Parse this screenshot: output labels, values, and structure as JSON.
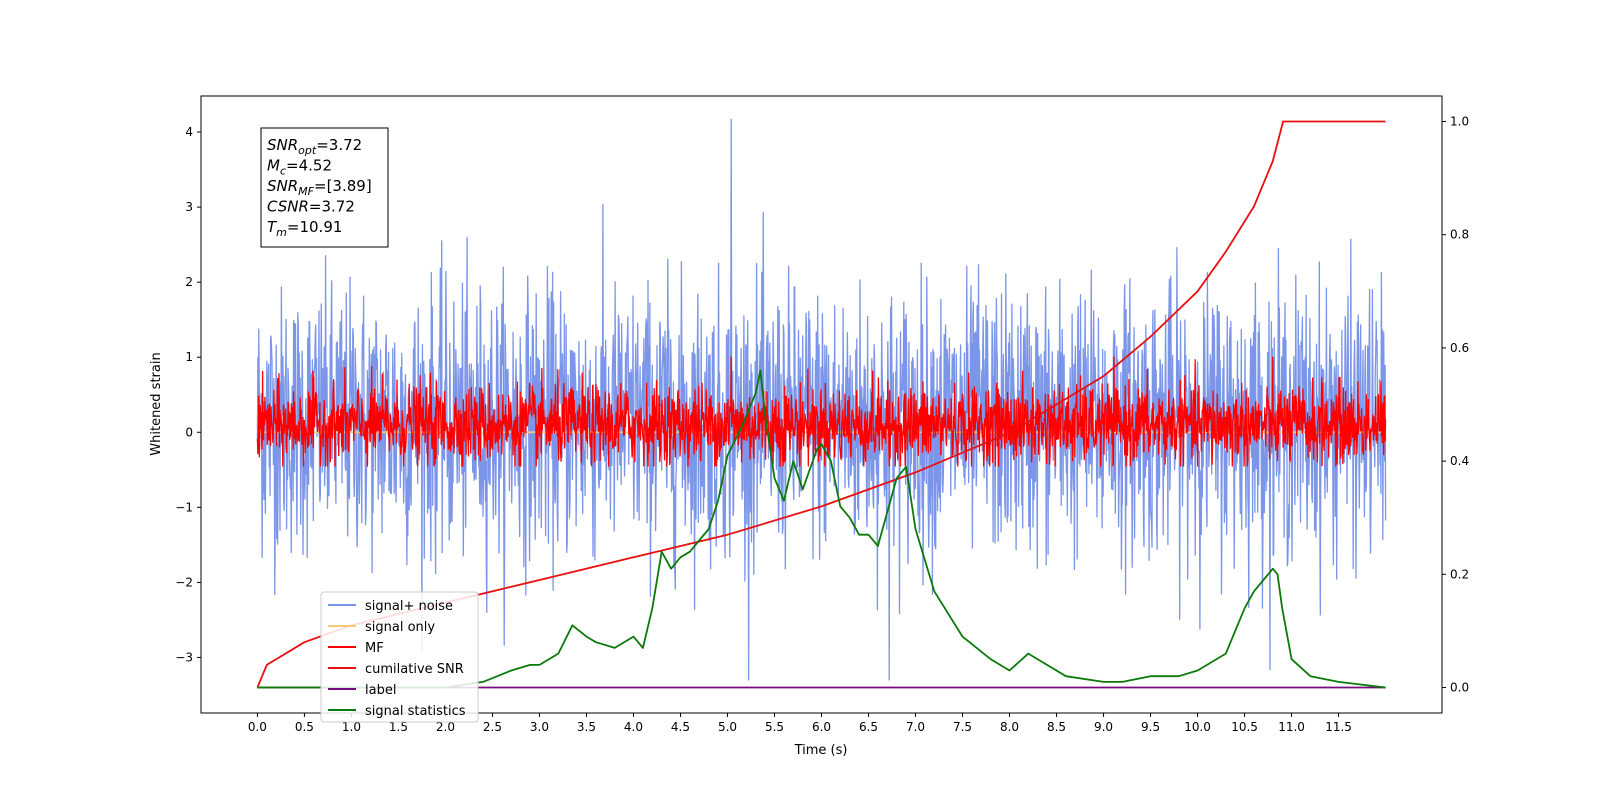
{
  "chart_data": {
    "type": "line",
    "xlabel": "Time (s)",
    "ylabel": "Whitened strain",
    "xlim": [
      -0.6,
      12.6
    ],
    "ylim": [
      -3.74,
      4.48
    ],
    "y2lim": [
      -0.045,
      1.045
    ],
    "x_ticks": [
      0.0,
      0.5,
      1.0,
      1.5,
      2.0,
      2.5,
      3.0,
      3.5,
      4.0,
      4.5,
      5.0,
      5.5,
      6.0,
      6.5,
      7.0,
      7.5,
      8.0,
      8.5,
      9.0,
      9.5,
      10.0,
      10.5,
      11.0,
      11.5
    ],
    "x_tick_labels": [
      "0.0",
      "0.5",
      "1.0",
      "1.5",
      "2.0",
      "2.5",
      "3.0",
      "3.5",
      "4.0",
      "4.5",
      "5.0",
      "5.5",
      "6.0",
      "6.5",
      "7.0",
      "7.5",
      "8.0",
      "8.5",
      "9.0",
      "9.5",
      "10.0",
      "10.5",
      "11.0",
      "11.5"
    ],
    "y_ticks": [
      -3,
      -2,
      -1,
      0,
      1,
      2,
      3,
      4
    ],
    "y_tick_labels": [
      "−3",
      "−2",
      "−1",
      "0",
      "1",
      "2",
      "3",
      "4"
    ],
    "y2_ticks": [
      0.0,
      0.2,
      0.4,
      0.6,
      0.8,
      1.0
    ],
    "y2_tick_labels": [
      "0.0",
      "0.2",
      "0.4",
      "0.6",
      "0.8",
      "1.0"
    ],
    "grid": false,
    "legend_position": "lower-left",
    "annotation": {
      "lines": [
        {
          "main": "SNR",
          "sub": "opt",
          "value": "=3.72"
        },
        {
          "main": "M",
          "sub": "c",
          "value": "=4.52"
        },
        {
          "main": "SNR",
          "sub": "MF",
          "value": "=[3.89]"
        },
        {
          "main": "CSNR",
          "sub": "",
          "value": "=3.72"
        },
        {
          "main": "T",
          "sub": "m",
          "value": "=10.91"
        }
      ]
    },
    "series": [
      {
        "name": "signal+ noise",
        "color": "#7b96e8",
        "axis": "left",
        "style": "noise",
        "x_range": [
          0,
          12
        ],
        "band": [
          -1.7,
          2.0
        ],
        "peaks": [
          4.17,
          -3.3
        ]
      },
      {
        "name": "signal only",
        "color": "#f5c97a",
        "axis": "left",
        "style": "flat",
        "x_range": [
          0,
          12
        ],
        "values": [
          0.0
        ]
      },
      {
        "name": "MF",
        "color": "#ff0000",
        "axis": "left",
        "style": "noise",
        "x_range": [
          0,
          12
        ],
        "band": [
          -0.45,
          0.65
        ],
        "peaks": [
          1.0,
          -0.45
        ]
      },
      {
        "name": "cumilative SNR",
        "color": "#e81010",
        "axis": "right",
        "style": "line",
        "x": [
          0.0,
          0.1,
          0.5,
          1.0,
          2.0,
          3.0,
          4.0,
          5.0,
          6.0,
          7.0,
          8.0,
          9.0,
          9.5,
          10.0,
          10.3,
          10.6,
          10.8,
          10.91,
          11.0,
          11.5,
          12.0
        ],
        "values": [
          0.0,
          0.04,
          0.08,
          0.11,
          0.15,
          0.19,
          0.23,
          0.27,
          0.32,
          0.38,
          0.45,
          0.55,
          0.62,
          0.7,
          0.77,
          0.85,
          0.93,
          1.0,
          1.0,
          1.0,
          1.0
        ]
      },
      {
        "name": "label",
        "color": "#750a7e",
        "axis": "right",
        "style": "line",
        "x": [
          0.0,
          12.0
        ],
        "values": [
          0.0,
          0.0
        ]
      },
      {
        "name": "signal statistics",
        "color": "#0a7a0a",
        "axis": "right",
        "style": "line",
        "x": [
          0.0,
          1.0,
          2.0,
          2.4,
          2.7,
          2.9,
          3.0,
          3.2,
          3.35,
          3.5,
          3.6,
          3.8,
          4.0,
          4.1,
          4.2,
          4.3,
          4.4,
          4.5,
          4.6,
          4.8,
          4.9,
          5.0,
          5.15,
          5.3,
          5.35,
          5.4,
          5.5,
          5.6,
          5.7,
          5.8,
          5.95,
          6.0,
          6.1,
          6.2,
          6.3,
          6.4,
          6.5,
          6.6,
          6.8,
          6.9,
          7.0,
          7.2,
          7.5,
          7.8,
          7.9,
          8.0,
          8.2,
          8.4,
          8.6,
          9.0,
          9.2,
          9.5,
          9.8,
          10.0,
          10.3,
          10.5,
          10.6,
          10.7,
          10.8,
          10.85,
          10.9,
          11.0,
          11.2,
          11.5,
          12.0
        ],
        "values": [
          0.0,
          0.0,
          0.0,
          0.01,
          0.03,
          0.04,
          0.04,
          0.06,
          0.11,
          0.09,
          0.08,
          0.07,
          0.09,
          0.07,
          0.14,
          0.24,
          0.21,
          0.23,
          0.24,
          0.28,
          0.33,
          0.41,
          0.46,
          0.52,
          0.56,
          0.48,
          0.37,
          0.33,
          0.4,
          0.35,
          0.42,
          0.43,
          0.4,
          0.32,
          0.3,
          0.27,
          0.27,
          0.25,
          0.37,
          0.39,
          0.28,
          0.17,
          0.09,
          0.05,
          0.04,
          0.03,
          0.06,
          0.04,
          0.02,
          0.01,
          0.01,
          0.02,
          0.02,
          0.03,
          0.06,
          0.14,
          0.17,
          0.19,
          0.21,
          0.2,
          0.14,
          0.05,
          0.02,
          0.01,
          0.0
        ]
      }
    ]
  }
}
